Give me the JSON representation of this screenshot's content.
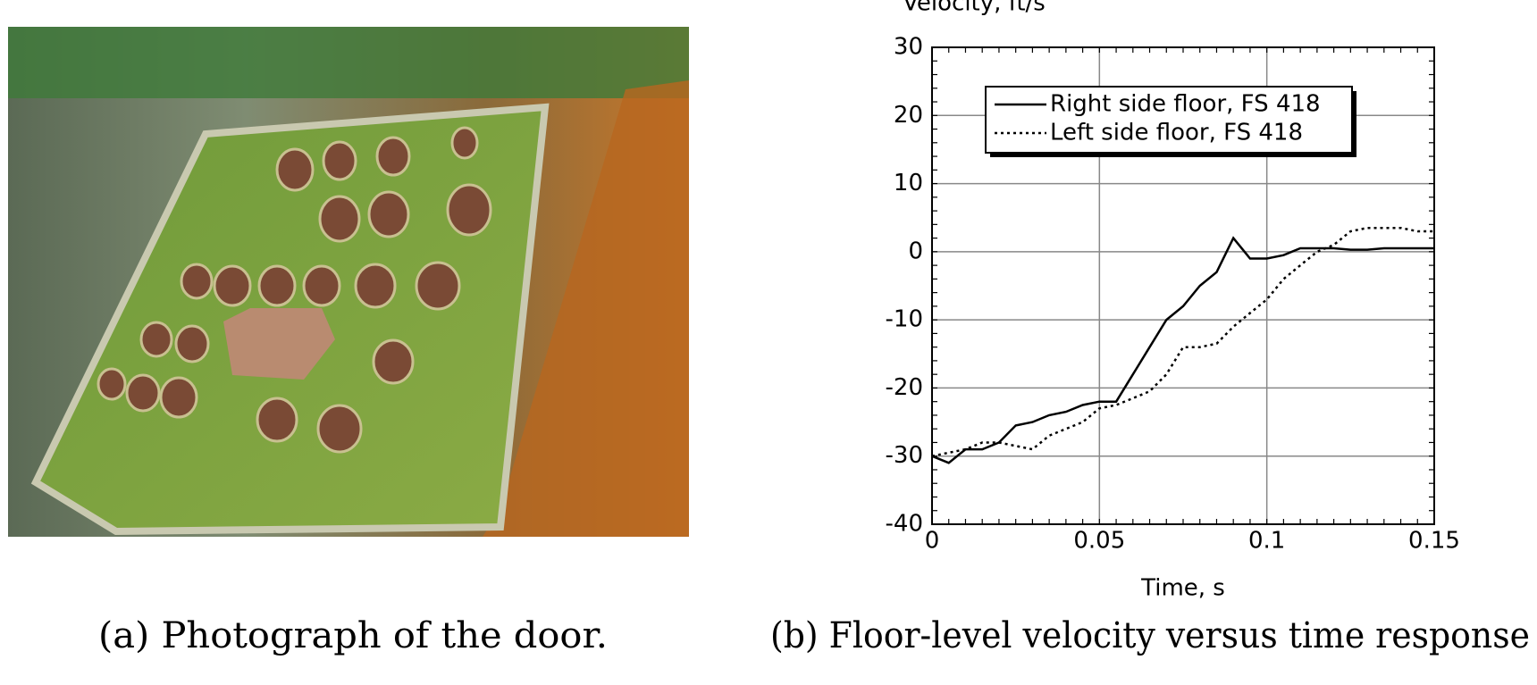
{
  "chart_data": {
    "type": "line",
    "y_label": "Velocity, ft/s",
    "x_label": "Time, s",
    "x": [
      0,
      0.005,
      0.01,
      0.015,
      0.02,
      0.025,
      0.03,
      0.035,
      0.04,
      0.045,
      0.05,
      0.055,
      0.06,
      0.065,
      0.07,
      0.075,
      0.08,
      0.085,
      0.09,
      0.095,
      0.1,
      0.105,
      0.11,
      0.115,
      0.12,
      0.125,
      0.13,
      0.135,
      0.14,
      0.145,
      0.15
    ],
    "series": [
      {
        "name": "Right side floor, FS 418",
        "color": "#000000",
        "line_style": "solid",
        "values": [
          -30,
          -31,
          -29,
          -29,
          -28,
          -25.5,
          -25,
          -24,
          -23.5,
          -22.5,
          -22,
          -22,
          -18,
          -14,
          -10,
          -8,
          -5,
          -3,
          2,
          -1,
          -1,
          -0.5,
          0.5,
          0.5,
          0.5,
          0.3,
          0.3,
          0.5,
          0.5,
          0.5,
          0.5
        ]
      },
      {
        "name": "Left side floor, FS 418",
        "color": "#000000",
        "line_style": "dotted",
        "values": [
          -30,
          -29.5,
          -29,
          -28,
          -28,
          -28.5,
          -29,
          -27,
          -26,
          -25,
          -23,
          -22.5,
          -21.5,
          -20.5,
          -18,
          -14,
          -14,
          -13.5,
          -11,
          -9,
          -7,
          -4,
          -2,
          0,
          1,
          3,
          3.5,
          3.5,
          3.5,
          3,
          3
        ]
      }
    ],
    "xlim": [
      0,
      0.15
    ],
    "xticks": [
      0,
      0.05,
      0.1,
      0.15
    ],
    "ylim": [
      -40,
      30
    ],
    "yticks": [
      -40,
      -30,
      -20,
      -10,
      0,
      10,
      20,
      30
    ],
    "grid": true,
    "legend": "upper left"
  },
  "captions": [
    "(a) Photograph of the door.",
    "(b) Floor-level velocity versus time response"
  ]
}
